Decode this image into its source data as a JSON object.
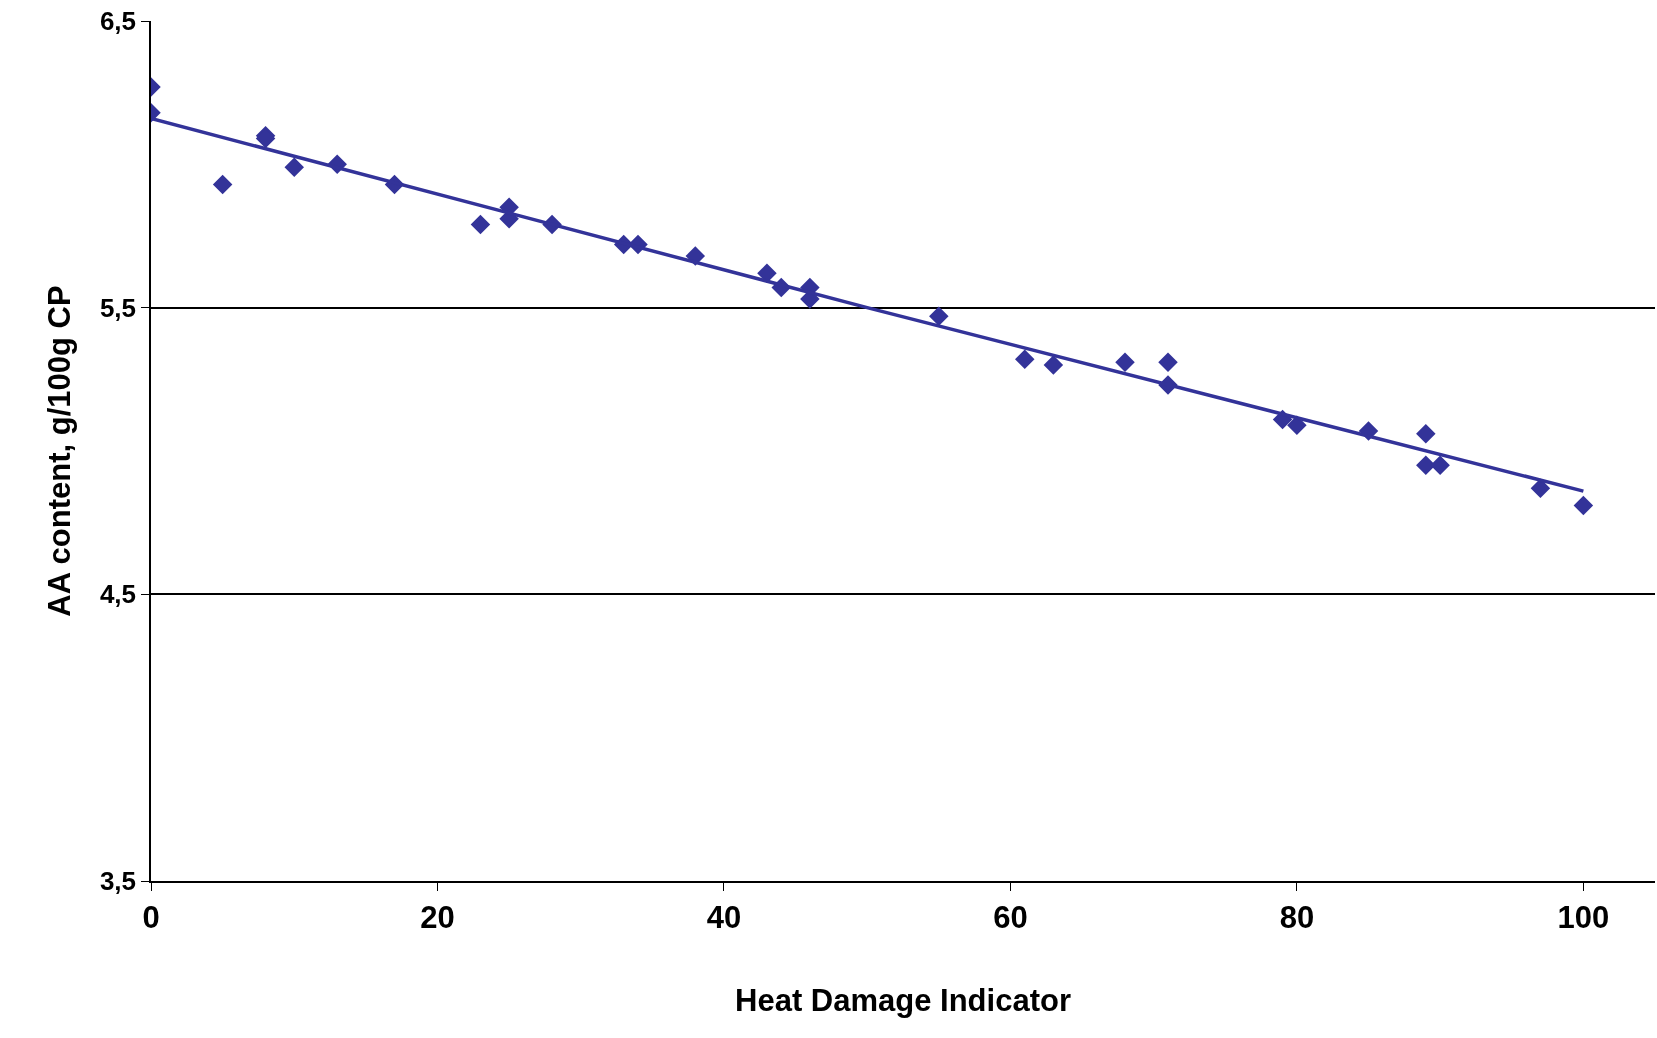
{
  "chart_data": {
    "type": "scatter",
    "xlabel": "Heat Damage Indicator",
    "ylabel": "AA content, g/100g CP",
    "xlim": [
      0,
      105
    ],
    "xticks": [
      0,
      20,
      40,
      60,
      80,
      100
    ],
    "ylim": [
      3.5,
      6.5
    ],
    "yticks": [
      {
        "value": 3.5,
        "label": "3,5"
      },
      {
        "value": 4.5,
        "label": "4,5"
      },
      {
        "value": 5.5,
        "label": "5,5"
      },
      {
        "value": 6.5,
        "label": "6,5"
      }
    ],
    "grid": "y",
    "marker": "diamond",
    "series": [
      {
        "color": "#333399",
        "x": [
          0,
          0,
          5,
          8,
          8,
          10,
          13,
          17,
          23,
          25,
          25,
          28,
          33,
          34,
          38,
          43,
          44,
          46,
          46,
          55,
          61,
          63,
          68,
          71,
          71,
          79,
          80,
          85,
          89,
          89,
          90,
          97,
          100
        ],
        "values": [
          6.27,
          6.18,
          5.93,
          6.1,
          6.09,
          5.99,
          6.0,
          5.93,
          5.79,
          5.85,
          5.81,
          5.79,
          5.72,
          5.72,
          5.68,
          5.62,
          5.57,
          5.57,
          5.53,
          5.47,
          5.32,
          5.3,
          5.31,
          5.31,
          5.23,
          5.11,
          5.09,
          5.07,
          5.06,
          4.95,
          4.95,
          4.87,
          4.81
        ]
      },
      {
        "color": "#333399",
        "type": "line",
        "marker": "none",
        "x": [
          0,
          50,
          100
        ],
        "values": [
          6.16,
          5.5,
          4.86
        ]
      }
    ]
  }
}
